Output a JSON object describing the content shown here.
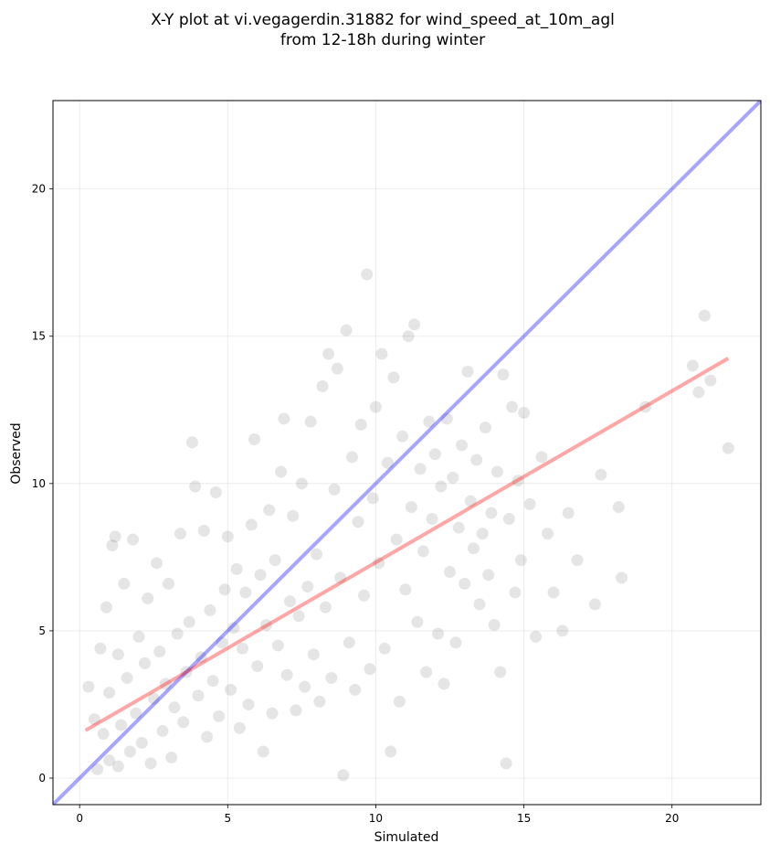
{
  "chart_data": {
    "type": "scatter",
    "title": [
      "X-Y plot at vi.vegagerdin.31882 for wind_speed_at_10m_agl",
      "from 12-18h during winter"
    ],
    "xlabel": "Simulated",
    "ylabel": "Observed",
    "xlim": [
      -0.9,
      23.0
    ],
    "ylim": [
      -0.9,
      23.0
    ],
    "xticks": [
      0,
      5,
      10,
      15,
      20
    ],
    "yticks": [
      0,
      5,
      10,
      15,
      20
    ],
    "grid": true,
    "colors": {
      "points": "#000000",
      "identity_line": "#0000ff",
      "fit_line": "#ff0000"
    },
    "lines": [
      {
        "role": "identity",
        "x": [
          -0.9,
          23.0
        ],
        "y": [
          -0.9,
          23.0
        ]
      },
      {
        "role": "regression",
        "x": [
          0.2,
          21.9
        ],
        "y": [
          1.62,
          14.25
        ]
      }
    ],
    "series": [
      {
        "points": [
          [
            0.3,
            3.1
          ],
          [
            0.5,
            2.0
          ],
          [
            0.6,
            0.3
          ],
          [
            0.7,
            4.4
          ],
          [
            0.8,
            1.5
          ],
          [
            0.9,
            5.8
          ],
          [
            1.0,
            0.6
          ],
          [
            1.0,
            2.9
          ],
          [
            1.1,
            7.9
          ],
          [
            1.2,
            8.2
          ],
          [
            1.3,
            0.4
          ],
          [
            1.3,
            4.2
          ],
          [
            1.4,
            1.8
          ],
          [
            1.5,
            6.6
          ],
          [
            1.6,
            3.4
          ],
          [
            1.7,
            0.9
          ],
          [
            1.8,
            8.1
          ],
          [
            1.9,
            2.2
          ],
          [
            2.0,
            4.8
          ],
          [
            2.1,
            1.2
          ],
          [
            2.2,
            3.9
          ],
          [
            2.3,
            6.1
          ],
          [
            2.4,
            0.5
          ],
          [
            2.5,
            2.7
          ],
          [
            2.6,
            7.3
          ],
          [
            2.7,
            4.3
          ],
          [
            2.8,
            1.6
          ],
          [
            2.9,
            3.2
          ],
          [
            3.0,
            6.6
          ],
          [
            3.1,
            0.7
          ],
          [
            3.2,
            2.4
          ],
          [
            3.3,
            4.9
          ],
          [
            3.4,
            8.3
          ],
          [
            3.5,
            1.9
          ],
          [
            3.6,
            3.6
          ],
          [
            3.7,
            5.3
          ],
          [
            3.8,
            11.4
          ],
          [
            3.9,
            9.9
          ],
          [
            4.0,
            2.8
          ],
          [
            4.1,
            4.1
          ],
          [
            4.2,
            8.4
          ],
          [
            4.3,
            1.4
          ],
          [
            4.4,
            5.7
          ],
          [
            4.5,
            3.3
          ],
          [
            4.6,
            9.7
          ],
          [
            4.7,
            2.1
          ],
          [
            4.8,
            4.6
          ],
          [
            4.9,
            6.4
          ],
          [
            5.0,
            8.2
          ],
          [
            5.1,
            3.0
          ],
          [
            5.2,
            5.1
          ],
          [
            5.3,
            7.1
          ],
          [
            5.4,
            1.7
          ],
          [
            5.5,
            4.4
          ],
          [
            5.6,
            6.3
          ],
          [
            5.7,
            2.5
          ],
          [
            5.8,
            8.6
          ],
          [
            5.9,
            11.5
          ],
          [
            6.0,
            3.8
          ],
          [
            6.1,
            6.9
          ],
          [
            6.2,
            0.9
          ],
          [
            6.3,
            5.2
          ],
          [
            6.4,
            9.1
          ],
          [
            6.5,
            2.2
          ],
          [
            6.6,
            7.4
          ],
          [
            6.7,
            4.5
          ],
          [
            6.8,
            10.4
          ],
          [
            6.9,
            12.2
          ],
          [
            7.0,
            3.5
          ],
          [
            7.1,
            6.0
          ],
          [
            7.2,
            8.9
          ],
          [
            7.3,
            2.3
          ],
          [
            7.4,
            5.5
          ],
          [
            7.5,
            10.0
          ],
          [
            7.6,
            3.1
          ],
          [
            7.7,
            6.5
          ],
          [
            7.8,
            12.1
          ],
          [
            7.9,
            4.2
          ],
          [
            8.0,
            7.6
          ],
          [
            8.1,
            2.6
          ],
          [
            8.2,
            13.3
          ],
          [
            8.3,
            5.8
          ],
          [
            8.4,
            14.4
          ],
          [
            8.5,
            3.4
          ],
          [
            8.6,
            9.8
          ],
          [
            8.7,
            13.9
          ],
          [
            8.8,
            6.8
          ],
          [
            8.9,
            0.1
          ],
          [
            9.0,
            15.2
          ],
          [
            9.1,
            4.6
          ],
          [
            9.2,
            10.9
          ],
          [
            9.3,
            3.0
          ],
          [
            9.4,
            8.7
          ],
          [
            9.5,
            12.0
          ],
          [
            9.6,
            6.2
          ],
          [
            9.7,
            17.1
          ],
          [
            9.8,
            3.7
          ],
          [
            9.9,
            9.5
          ],
          [
            10.0,
            12.6
          ],
          [
            10.1,
            7.3
          ],
          [
            10.2,
            14.4
          ],
          [
            10.3,
            4.4
          ],
          [
            10.4,
            10.7
          ],
          [
            10.5,
            0.9
          ],
          [
            10.6,
            13.6
          ],
          [
            10.7,
            8.1
          ],
          [
            10.8,
            2.6
          ],
          [
            10.9,
            11.6
          ],
          [
            11.0,
            6.4
          ],
          [
            11.1,
            15.0
          ],
          [
            11.2,
            9.2
          ],
          [
            11.3,
            15.4
          ],
          [
            11.4,
            5.3
          ],
          [
            11.5,
            10.5
          ],
          [
            11.6,
            7.7
          ],
          [
            11.7,
            3.6
          ],
          [
            11.8,
            12.1
          ],
          [
            11.9,
            8.8
          ],
          [
            12.0,
            11.0
          ],
          [
            12.1,
            4.9
          ],
          [
            12.2,
            9.9
          ],
          [
            12.3,
            3.2
          ],
          [
            12.4,
            12.2
          ],
          [
            12.5,
            7.0
          ],
          [
            12.6,
            10.2
          ],
          [
            12.7,
            4.6
          ],
          [
            12.8,
            8.5
          ],
          [
            12.9,
            11.3
          ],
          [
            13.0,
            6.6
          ],
          [
            13.1,
            13.8
          ],
          [
            13.2,
            9.4
          ],
          [
            13.3,
            7.8
          ],
          [
            13.4,
            10.8
          ],
          [
            13.5,
            5.9
          ],
          [
            13.6,
            8.3
          ],
          [
            13.7,
            11.9
          ],
          [
            13.8,
            6.9
          ],
          [
            13.9,
            9.0
          ],
          [
            14.0,
            5.2
          ],
          [
            14.1,
            10.4
          ],
          [
            14.2,
            3.6
          ],
          [
            14.3,
            13.7
          ],
          [
            14.4,
            0.5
          ],
          [
            14.5,
            8.8
          ],
          [
            14.6,
            12.6
          ],
          [
            14.7,
            6.3
          ],
          [
            14.8,
            10.1
          ],
          [
            14.9,
            7.4
          ],
          [
            15.0,
            12.4
          ],
          [
            15.2,
            9.3
          ],
          [
            15.4,
            4.8
          ],
          [
            15.6,
            10.9
          ],
          [
            15.8,
            8.3
          ],
          [
            16.0,
            6.3
          ],
          [
            16.3,
            5.0
          ],
          [
            16.5,
            9.0
          ],
          [
            16.8,
            7.4
          ],
          [
            17.4,
            5.9
          ],
          [
            17.6,
            10.3
          ],
          [
            18.2,
            9.2
          ],
          [
            18.3,
            6.8
          ],
          [
            19.1,
            12.6
          ],
          [
            20.7,
            14.0
          ],
          [
            20.9,
            13.1
          ],
          [
            21.1,
            15.7
          ],
          [
            21.3,
            13.5
          ],
          [
            21.9,
            11.2
          ]
        ]
      }
    ]
  }
}
